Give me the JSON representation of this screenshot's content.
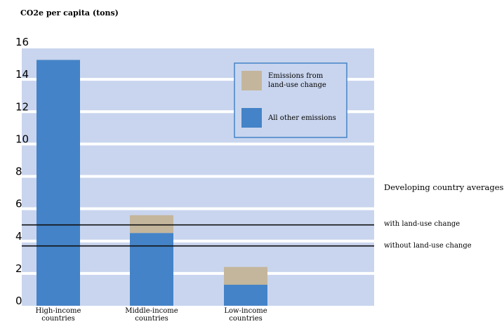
{
  "chart_data": {
    "type": "bar",
    "ylabel": "CO2e per capita (tons)",
    "ylim": [
      0,
      16
    ],
    "yticks": [
      "0",
      "2",
      "4",
      "6",
      "8",
      "10",
      "12",
      "14",
      "16"
    ],
    "categories": [
      [
        "High-income",
        "countries"
      ],
      [
        "Middle-income",
        "countries"
      ],
      [
        "Low-income",
        "countries"
      ]
    ],
    "series": [
      {
        "name": "All other emissions",
        "values": [
          15.2,
          4.5,
          1.3
        ],
        "color": "#4483c7"
      },
      {
        "name": "Emissions from land-use change",
        "name_lines": [
          "Emissions from",
          "land-use change"
        ],
        "values": [
          0,
          1.1,
          1.1
        ],
        "color": "#c4b69c"
      }
    ],
    "stacked": true,
    "grid": true,
    "legend_position": "top-right",
    "reference_lines": {
      "title": "Developing country averages:",
      "lines": [
        {
          "label": "with land-use change",
          "value": 5.0
        },
        {
          "label": "without land-use change",
          "value": 3.7
        }
      ]
    },
    "colors": {
      "band": "#c9d5ee",
      "background": "#ffffff"
    }
  }
}
